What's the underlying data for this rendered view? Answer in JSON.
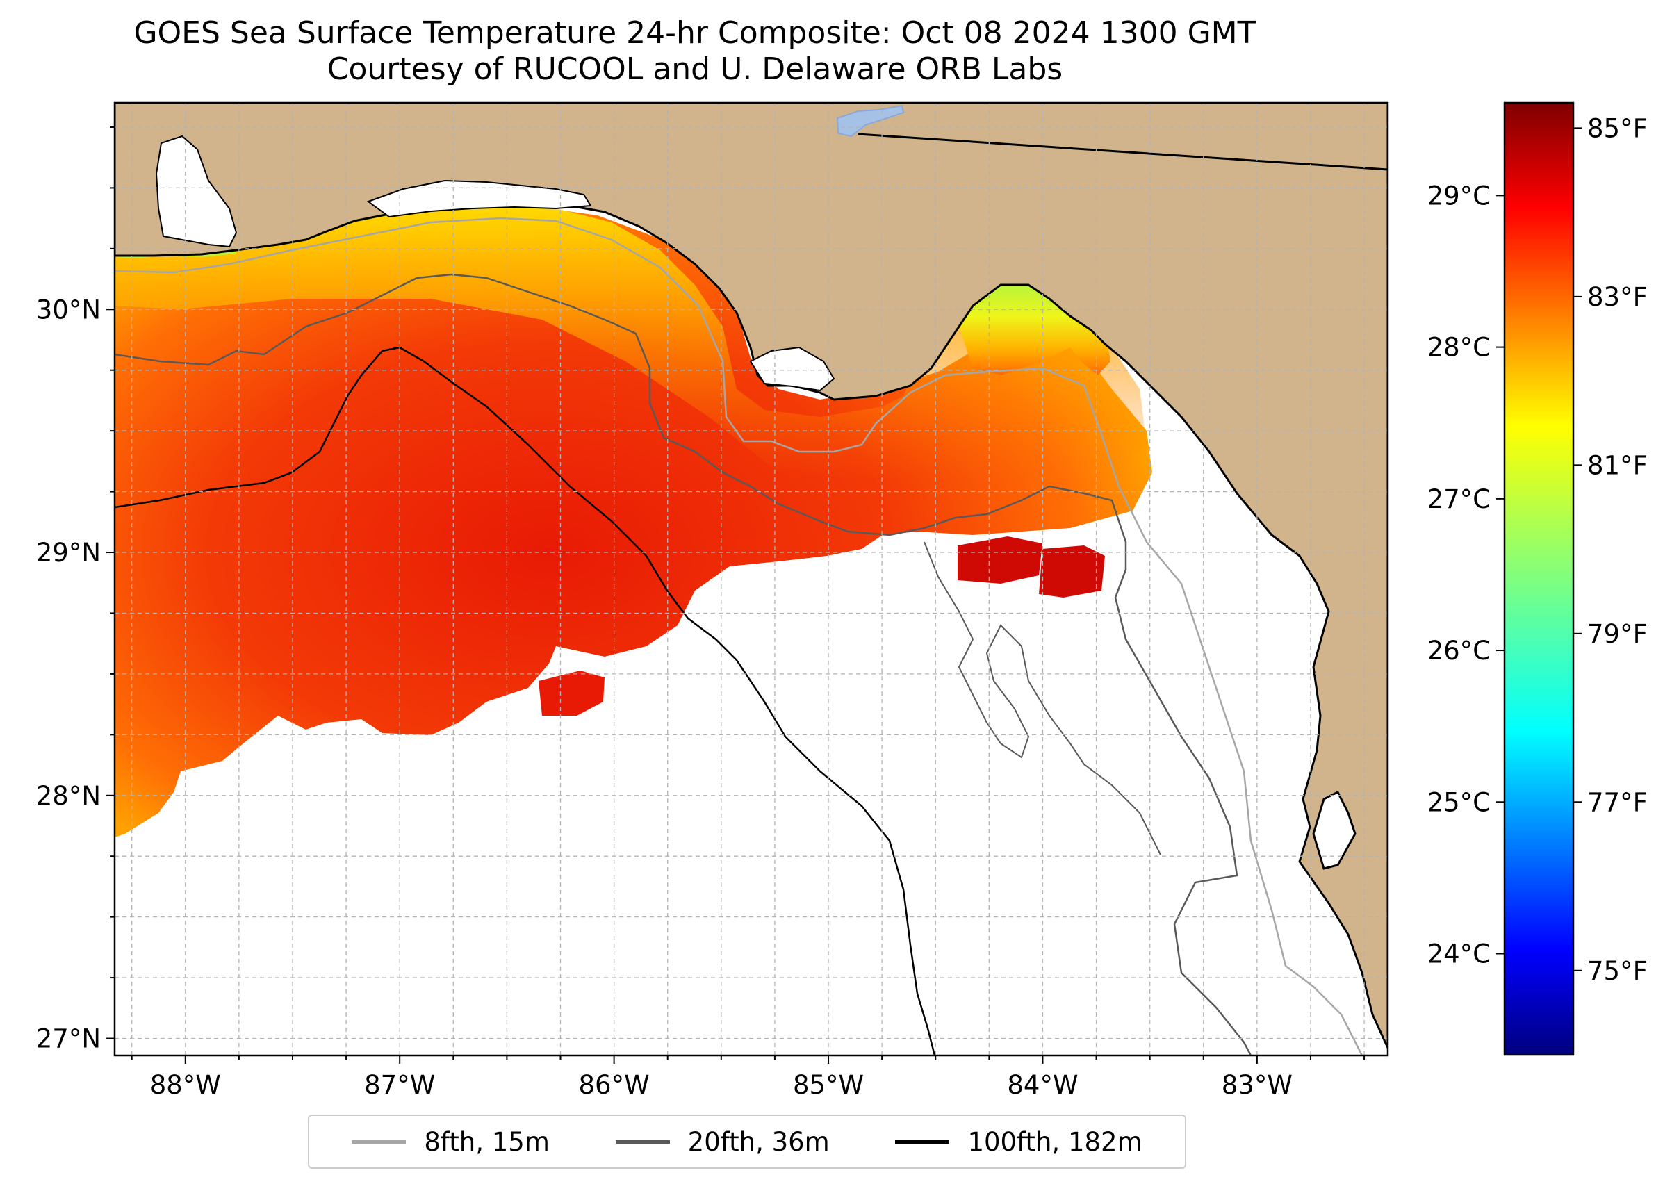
{
  "title": {
    "line1": "GOES Sea Surface Temperature 24-hr Composite: Oct 08 2024 1300 GMT",
    "line2": "Courtesy of RUCOOL and U. Delaware ORB Labs"
  },
  "map": {
    "extent": {
      "lon_min": -88.33,
      "lon_max": -82.39,
      "lat_min": 26.93,
      "lat_max": 30.85
    },
    "gridlines": true,
    "colors": {
      "land": "#d2b48c",
      "ocean_no_data": "#ffffff",
      "lake": "#a6c1e6",
      "grid": "#b3b3b3"
    },
    "lat_ticks": [
      {
        "value": 30,
        "label": "30°N"
      },
      {
        "value": 29,
        "label": "29°N"
      },
      {
        "value": 28,
        "label": "28°N"
      },
      {
        "value": 27,
        "label": "27°N"
      }
    ],
    "lon_ticks": [
      {
        "value": -88,
        "label": "88°W"
      },
      {
        "value": -87,
        "label": "87°W"
      },
      {
        "value": -86,
        "label": "86°W"
      },
      {
        "value": -85,
        "label": "85°W"
      },
      {
        "value": -84,
        "label": "84°W"
      },
      {
        "value": -83,
        "label": "83°W"
      }
    ]
  },
  "colorbar": {
    "colormap": "jet",
    "range_f": [
      74.0,
      85.3
    ],
    "celsius_ticks": [
      {
        "value": 29,
        "label": "29°C"
      },
      {
        "value": 28,
        "label": "28°C"
      },
      {
        "value": 27,
        "label": "27°C"
      },
      {
        "value": 26,
        "label": "26°C"
      },
      {
        "value": 25,
        "label": "25°C"
      },
      {
        "value": 24,
        "label": "24°C"
      }
    ],
    "fahrenheit_ticks": [
      {
        "value": 85,
        "label": "85°F"
      },
      {
        "value": 83,
        "label": "83°F"
      },
      {
        "value": 81,
        "label": "81°F"
      },
      {
        "value": 79,
        "label": "79°F"
      },
      {
        "value": 77,
        "label": "77°F"
      },
      {
        "value": 75,
        "label": "75°F"
      }
    ]
  },
  "legend": [
    {
      "label": "8fth, 15m",
      "color": "#a6a6a6"
    },
    {
      "label": "20fth, 36m",
      "color": "#595959"
    },
    {
      "label": "100fth, 182m",
      "color": "#000000"
    }
  ]
}
